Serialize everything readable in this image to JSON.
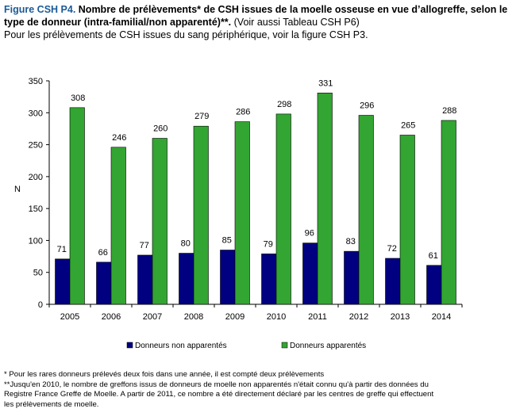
{
  "header": {
    "figure_label": "Figure CSH P4.",
    "title": "Nombre de prélèvements* de CSH issues de la moelle osseuse en vue d’allogreffe, selon le type de donneur (intra-familial/non apparenté)**.",
    "ref": "(Voir aussi Tableau CSH P6)",
    "line3": "Pour les prélèvements de CSH issues du sang périphérique, voir la figure CSH P3."
  },
  "chart_data": {
    "type": "bar",
    "title": "",
    "xlabel": "",
    "ylabel": "N",
    "categories": [
      "2005",
      "2006",
      "2007",
      "2008",
      "2009",
      "2010",
      "2011",
      "2012",
      "2013",
      "2014"
    ],
    "series": [
      {
        "name": "Donneurs non apparentés",
        "color": "#000080",
        "values": [
          71,
          66,
          77,
          80,
          85,
          79,
          96,
          83,
          72,
          61
        ]
      },
      {
        "name": "Donneurs apparentés",
        "color": "#33a532",
        "values": [
          308,
          246,
          260,
          279,
          286,
          298,
          331,
          296,
          265,
          288
        ]
      }
    ],
    "ylim": [
      0,
      350
    ],
    "yticks": [
      0,
      50,
      100,
      150,
      200,
      250,
      300,
      350
    ],
    "grid": false,
    "legend_position": "bottom"
  },
  "footnotes": [
    "* Pour les rares donneurs prélevés deux fois dans une année, il est compté deux prélèvements",
    "**Jusqu'en 2010, le nombre de greffons issus de donneurs de moelle non apparentés n'était connu qu'à partir des données du",
    "Registre France Greffe de Moelle. A partir de 2011, ce nombre a été directement déclaré par les centres de greffe qui effectuent",
    "les prélèvements de moelle."
  ]
}
